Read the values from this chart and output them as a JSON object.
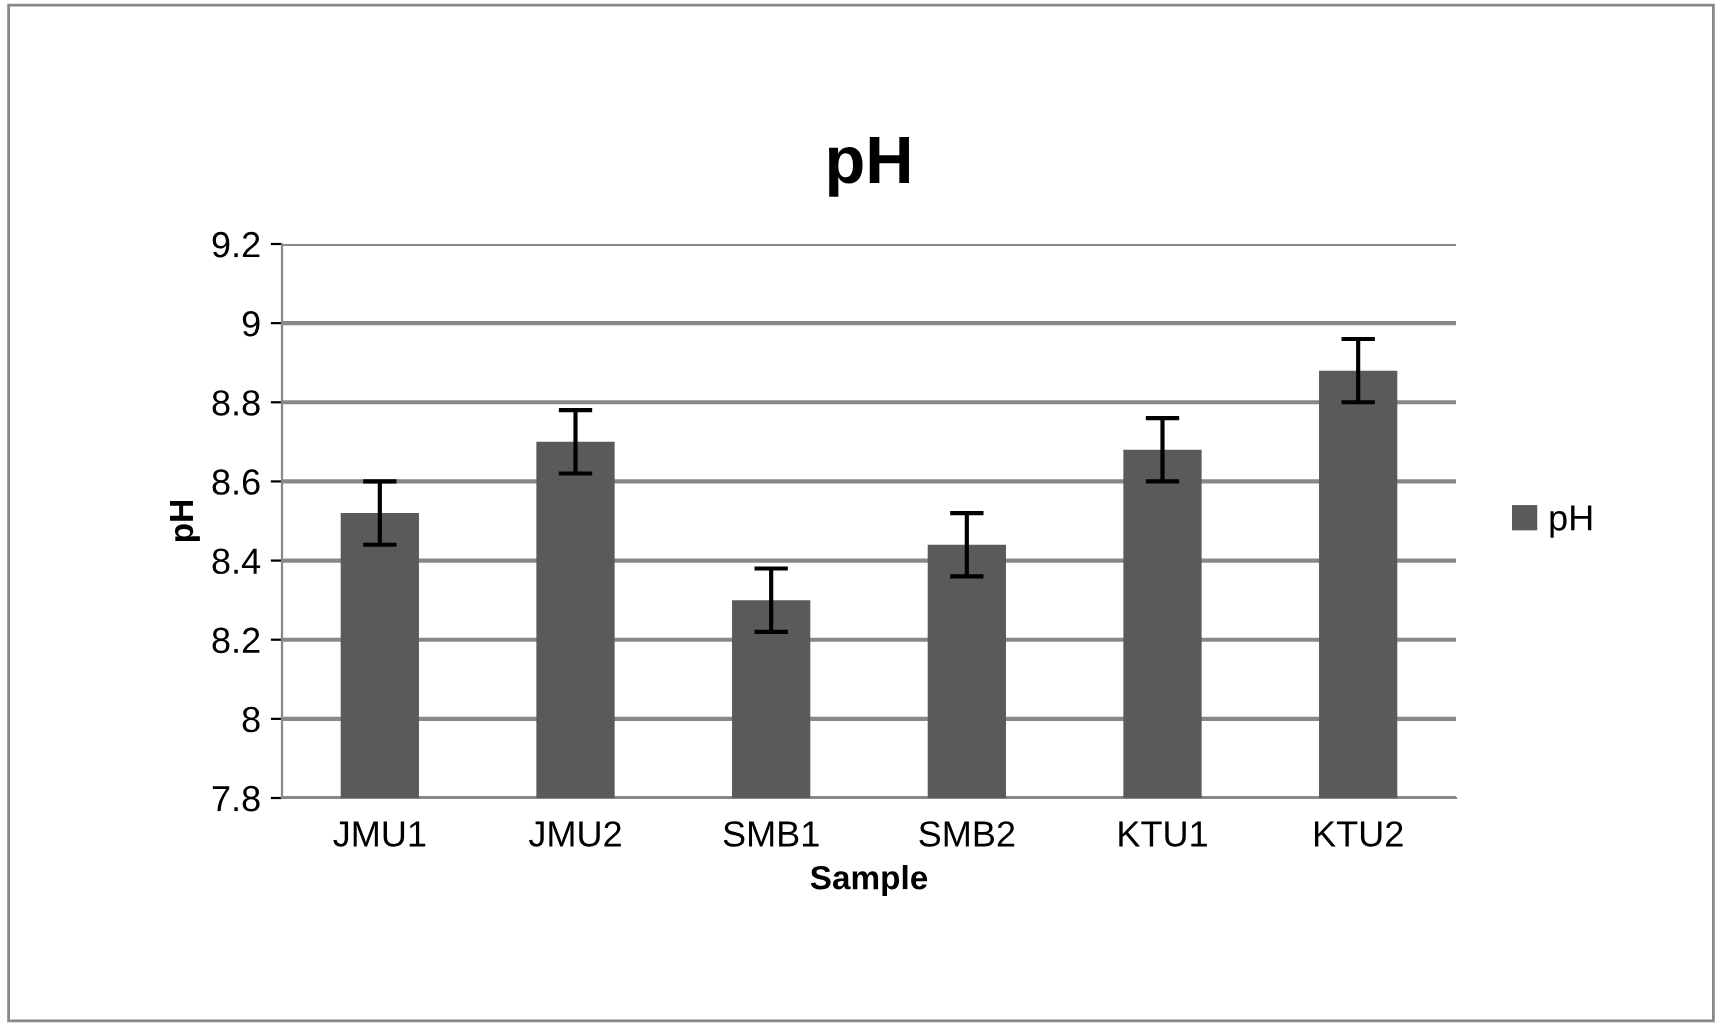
{
  "chart_data": {
    "type": "bar",
    "title": "pH",
    "xlabel": "Sample",
    "ylabel": "pH",
    "categories": [
      "JMU1",
      "JMU2",
      "SMB1",
      "SMB2",
      "KTU1",
      "KTU2"
    ],
    "series": [
      {
        "name": "pH",
        "color": "#5a5a5a",
        "values": [
          8.52,
          8.7,
          8.3,
          8.44,
          8.68,
          8.88
        ],
        "errors": [
          0.08,
          0.08,
          0.08,
          0.08,
          0.08,
          0.08
        ]
      }
    ],
    "ylim": [
      7.8,
      9.2
    ],
    "yticks": [
      {
        "value": 7.8,
        "label": "7.8"
      },
      {
        "value": 8.0,
        "label": "8"
      },
      {
        "value": 8.2,
        "label": "8.2"
      },
      {
        "value": 8.4,
        "label": "8.4"
      },
      {
        "value": 8.6,
        "label": "8.6"
      },
      {
        "value": 8.8,
        "label": "8.8"
      },
      {
        "value": 9.0,
        "label": "9"
      },
      {
        "value": 9.2,
        "label": "9.2"
      }
    ],
    "grid": "y",
    "legend": "right"
  }
}
